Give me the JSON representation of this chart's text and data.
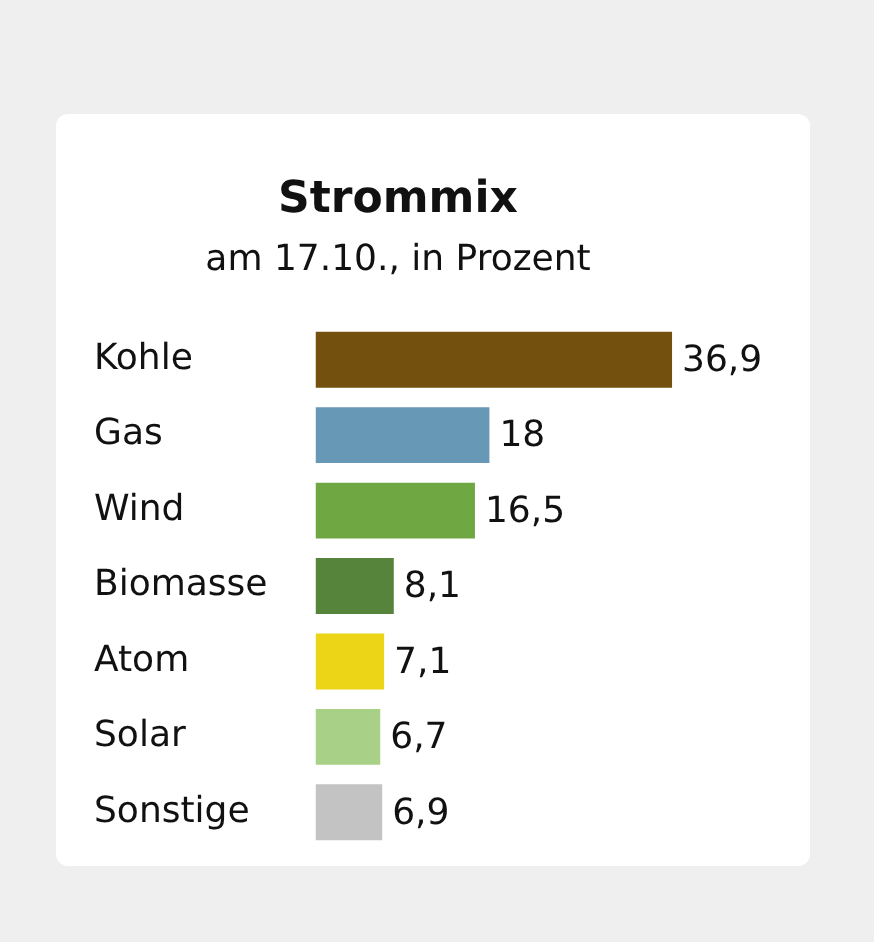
{
  "chart_data": {
    "type": "bar",
    "orientation": "horizontal",
    "title": "Strommix",
    "subtitle": "am 17.10., in Prozent",
    "categories": [
      "Kohle",
      "Gas",
      "Wind",
      "Biomasse",
      "Atom",
      "Solar",
      "Sonstige"
    ],
    "values": [
      36.9,
      18,
      16.5,
      8.1,
      7.1,
      6.7,
      6.9
    ],
    "colors": [
      "#74500e",
      "#6799b6",
      "#6fa843",
      "#55843a",
      "#ecd516",
      "#a8d187",
      "#c3c3c3"
    ],
    "value_labels": [
      "36,9",
      "18",
      "16,5",
      "8,1",
      "7,1",
      "6,7",
      "6,9"
    ],
    "grid": false,
    "legend": false
  }
}
